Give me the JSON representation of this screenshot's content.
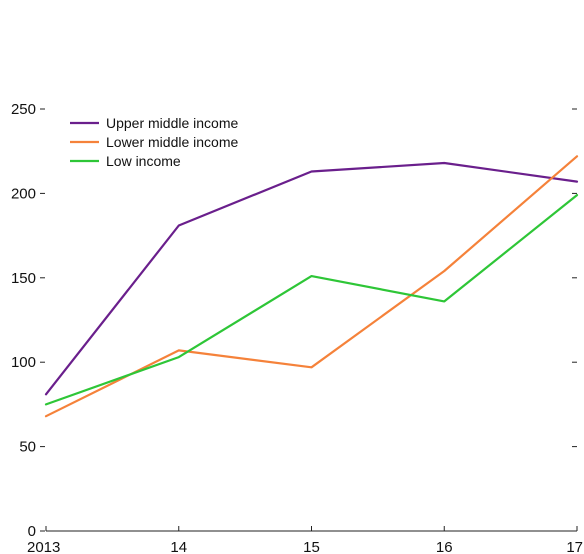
{
  "chart_data": {
    "type": "line",
    "x": [
      "2013",
      "14",
      "15",
      "16",
      "17"
    ],
    "ylim": [
      0,
      250
    ],
    "yticks": [
      0,
      50,
      100,
      150,
      200,
      250
    ],
    "grid": false,
    "legend_position": "top-left",
    "series": [
      {
        "name": "Upper middle income",
        "color": "#6a1f8c",
        "values": [
          81,
          181,
          213,
          218,
          207
        ]
      },
      {
        "name": "Lower middle income",
        "color": "#f5823a",
        "values": [
          68,
          107,
          97,
          154,
          222
        ]
      },
      {
        "name": "Low income",
        "color": "#2ec637",
        "values": [
          75,
          103,
          151,
          136,
          199
        ]
      }
    ]
  }
}
